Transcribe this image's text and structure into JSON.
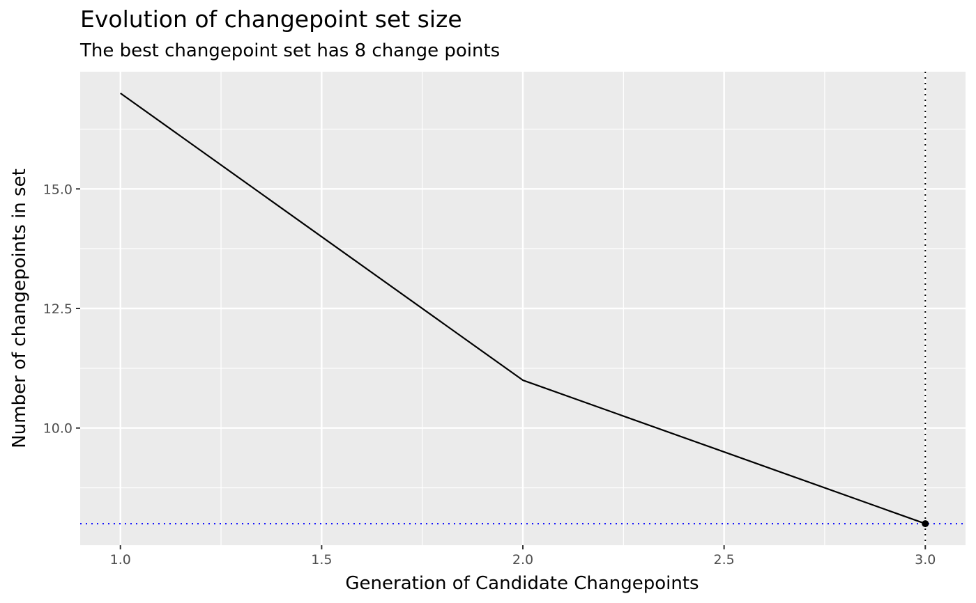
{
  "chart_data": {
    "type": "line",
    "title": "Evolution of changepoint set size",
    "subtitle": "The best changepoint set has 8 change points",
    "xlabel": "Generation of Candidate Changepoints",
    "ylabel": "Number of changepoints in set",
    "x": [
      1,
      2,
      3
    ],
    "series": [
      {
        "values": [
          17,
          11,
          8
        ],
        "color": "#000000"
      }
    ],
    "highlight_point": {
      "x": 3,
      "y": 8
    },
    "reference_lines": {
      "vertical": {
        "x": 3,
        "style": "dotted",
        "color": "#000000"
      },
      "horizontal": {
        "y": 8,
        "style": "dotted",
        "color": "#0000ff"
      }
    },
    "xlim": [
      0.9,
      3.1
    ],
    "ylim": [
      7.55,
      17.45
    ],
    "x_ticks": [
      1.0,
      1.5,
      2.0,
      2.5,
      3.0
    ],
    "x_tick_labels": [
      "1.0",
      "1.5",
      "2.0",
      "2.5",
      "3.0"
    ],
    "y_ticks": [
      10.0,
      12.5,
      15.0
    ],
    "y_tick_labels": [
      "10.0",
      "12.5",
      "15.0"
    ],
    "grid": true,
    "panel_background": "#ebebeb",
    "grid_color": "#ffffff"
  }
}
